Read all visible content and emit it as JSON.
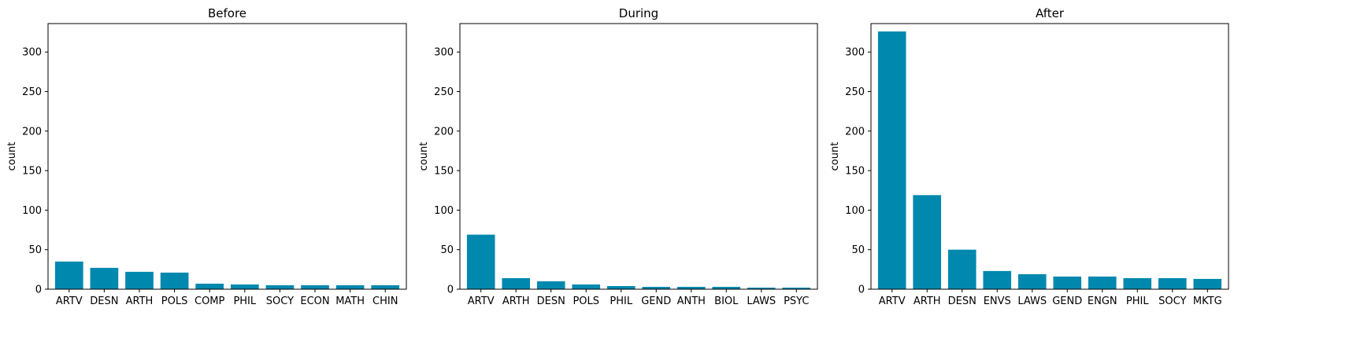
{
  "chart_data": [
    {
      "type": "bar",
      "title": "Before",
      "xlabel": "",
      "ylabel": "count",
      "ylim": [
        0,
        336
      ],
      "yticks": [
        0,
        50,
        100,
        150,
        200,
        250,
        300
      ],
      "grid": false,
      "categories": [
        "ARTV",
        "DESN",
        "ARTH",
        "POLS",
        "COMP",
        "PHIL",
        "SOCY",
        "ECON",
        "MATH",
        "CHIN"
      ],
      "values": [
        35,
        27,
        22,
        21,
        7,
        6,
        5,
        5,
        5,
        5
      ]
    },
    {
      "type": "bar",
      "title": "During",
      "xlabel": "",
      "ylabel": "count",
      "ylim": [
        0,
        336
      ],
      "yticks": [
        0,
        50,
        100,
        150,
        200,
        250,
        300
      ],
      "grid": false,
      "categories": [
        "ARTV",
        "ARTH",
        "DESN",
        "POLS",
        "PHIL",
        "GEND",
        "ANTH",
        "BIOL",
        "LAWS",
        "PSYC"
      ],
      "values": [
        69,
        14,
        10,
        6,
        4,
        3,
        3,
        3,
        2,
        2
      ]
    },
    {
      "type": "bar",
      "title": "After",
      "xlabel": "",
      "ylabel": "count",
      "ylim": [
        0,
        336
      ],
      "yticks": [
        0,
        50,
        100,
        150,
        200,
        250,
        300
      ],
      "grid": false,
      "categories": [
        "ARTV",
        "ARTH",
        "DESN",
        "ENVS",
        "LAWS",
        "GEND",
        "ENGN",
        "PHIL",
        "SOCY",
        "MKTG"
      ],
      "values": [
        326,
        119,
        50,
        23,
        19,
        16,
        16,
        14,
        14,
        13
      ]
    }
  ],
  "colors": {
    "bar": "#0088ae",
    "axis": "#000000",
    "text": "#000000",
    "background": "#ffffff"
  }
}
